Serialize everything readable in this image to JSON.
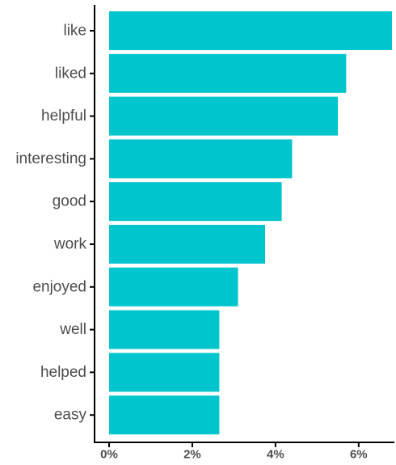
{
  "chart_data": {
    "type": "bar",
    "orientation": "horizontal",
    "categories": [
      "like",
      "liked",
      "helpful",
      "interesting",
      "good",
      "work",
      "enjoyed",
      "well",
      "helped",
      "easy"
    ],
    "values": [
      6.8,
      5.7,
      5.5,
      4.4,
      4.15,
      3.75,
      3.1,
      2.65,
      2.65,
      2.65
    ],
    "unit": "%",
    "xlim": [
      0,
      6.8
    ],
    "xticks": [
      0,
      2,
      4,
      6
    ],
    "xtick_labels": [
      "0%",
      "2%",
      "4%",
      "6%"
    ],
    "bar_color": "#00C5CD",
    "grid": false,
    "title": "",
    "xlabel": "",
    "ylabel": ""
  }
}
